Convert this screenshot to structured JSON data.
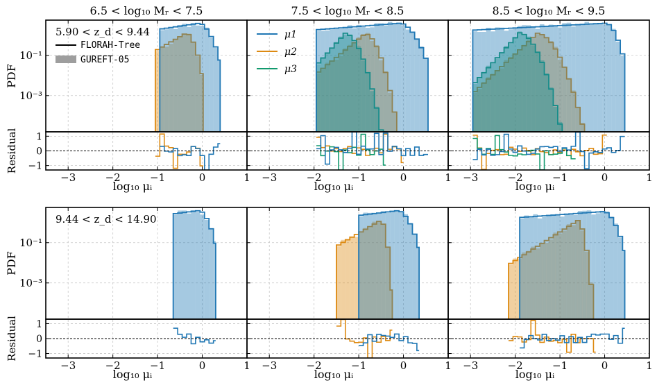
{
  "colors": {
    "mu1": "#1f77b4",
    "mu2": "#dd8a12",
    "mu3": "#129a6e",
    "gureft": "#9e9e9e",
    "grid": "#c8c8c8"
  },
  "chart_data": {
    "type": "histogram-grid",
    "column_titles": [
      "6.5 < log10 Mr < 7.5",
      "7.5 < log10 Mr < 8.5",
      "8.5 < log10 Mr < 9.5"
    ],
    "row_labels": [
      "5.90 < zd < 9.44",
      "9.44 < zd < 14.90"
    ],
    "ylabel_pdf": "PDF",
    "ylabel_residual": "Residual",
    "xlabel": "log10 μi",
    "xlim": [
      -3.5,
      1.0
    ],
    "pdf_ylim_log10": [
      -4.8,
      0.75
    ],
    "pdf_yticks": [
      {
        "label": "10⁻¹",
        "log": -1
      },
      {
        "label": "10⁻³",
        "log": -3
      }
    ],
    "residual_ylim": [
      -1.3,
      1.3
    ],
    "residual_yticks": [
      1,
      0,
      -1
    ],
    "xticks": [
      -3,
      -2,
      -1,
      0,
      1
    ],
    "legend_linestyle": [
      {
        "label": "FLORAH-Tree",
        "style": "line"
      },
      {
        "label": "GUREFT-05",
        "style": "patch"
      }
    ],
    "legend_series": [
      "μ1",
      "μ2",
      "μ3"
    ],
    "series_defs": {
      "mu1_r0c0": {
        "xmin": -0.95,
        "xmax": 0.4,
        "mode": -0.05,
        "peak": 0.6,
        "left": 0.3,
        "right": 0.14,
        "floor": -4.2,
        "seed": 11
      },
      "mu2_r0c0": {
        "xmin": -1.05,
        "xmax": 0.02,
        "mode": -0.35,
        "peak": 0.12,
        "left": 0.9,
        "right": 0.18,
        "floor": -4.2,
        "seed": 12
      },
      "mu1_r0c1": {
        "xmin": -1.95,
        "xmax": 0.55,
        "mode": -0.05,
        "peak": 0.6,
        "left": 0.33,
        "right": 0.16,
        "floor": -4.2,
        "seed": 21
      },
      "mu2_r0c1": {
        "xmin": -1.95,
        "xmax": 0.0,
        "mode": -0.85,
        "peak": 0.08,
        "left": 2.0,
        "right": 0.6,
        "floor": -4.0,
        "seed": 22
      },
      "mu3_r0c1": {
        "xmin": -1.95,
        "xmax": -0.4,
        "mode": -1.3,
        "peak": 0.1,
        "left": 1.6,
        "right": 0.55,
        "floor": -4.0,
        "seed": 23
      },
      "mu1_r0c2": {
        "xmin": -2.95,
        "xmax": 0.45,
        "mode": 0.05,
        "peak": 0.6,
        "left": 0.35,
        "right": 0.15,
        "floor": -4.2,
        "seed": 31
      },
      "mu2_r0c2": {
        "xmin": -2.95,
        "xmax": 0.05,
        "mode": -1.5,
        "peak": 0.1,
        "left": 3.0,
        "right": 1.0,
        "floor": -4.0,
        "seed": 32
      },
      "mu3_r0c2": {
        "xmin": -2.95,
        "xmax": -0.65,
        "mode": -1.9,
        "peak": 0.12,
        "left": 2.6,
        "right": 0.8,
        "floor": -4.0,
        "seed": 33
      },
      "mu1_r1c0": {
        "xmin": -0.65,
        "xmax": 0.3,
        "mode": -0.05,
        "peak": 0.6,
        "left": 0.17,
        "right": 0.12,
        "floor": -4.3,
        "seed": 41
      },
      "mu1_r1c1": {
        "xmin": -1.0,
        "xmax": 0.35,
        "mode": -0.1,
        "peak": 0.6,
        "left": 0.25,
        "right": 0.14,
        "floor": -4.2,
        "seed": 51
      },
      "mu2_r1c1": {
        "xmin": -1.5,
        "xmax": -0.25,
        "mode": -0.5,
        "peak": 0.12,
        "left": 1.3,
        "right": 0.3,
        "floor": -4.0,
        "seed": 52
      },
      "mu1_r1c2": {
        "xmin": -1.9,
        "xmax": 0.45,
        "mode": 0.0,
        "peak": 0.55,
        "left": 0.3,
        "right": 0.15,
        "floor": -4.2,
        "seed": 61
      },
      "mu2_r1c2": {
        "xmin": -2.15,
        "xmax": -0.2,
        "mode": -0.6,
        "peak": 0.1,
        "left": 2.2,
        "right": 0.5,
        "floor": -4.0,
        "seed": 62
      }
    },
    "panels": [
      {
        "row": 0,
        "col": 0,
        "series": [
          "mu2",
          "mu1"
        ],
        "has_legend": "linestyle"
      },
      {
        "row": 0,
        "col": 1,
        "series": [
          "mu2",
          "mu3",
          "mu1"
        ],
        "has_legend": "series"
      },
      {
        "row": 0,
        "col": 2,
        "series": [
          "mu2",
          "mu3",
          "mu1"
        ]
      },
      {
        "row": 1,
        "col": 0,
        "series": [
          "mu1"
        ]
      },
      {
        "row": 1,
        "col": 1,
        "series": [
          "mu2",
          "mu1"
        ]
      },
      {
        "row": 1,
        "col": 2,
        "series": [
          "mu2",
          "mu1"
        ]
      }
    ]
  }
}
